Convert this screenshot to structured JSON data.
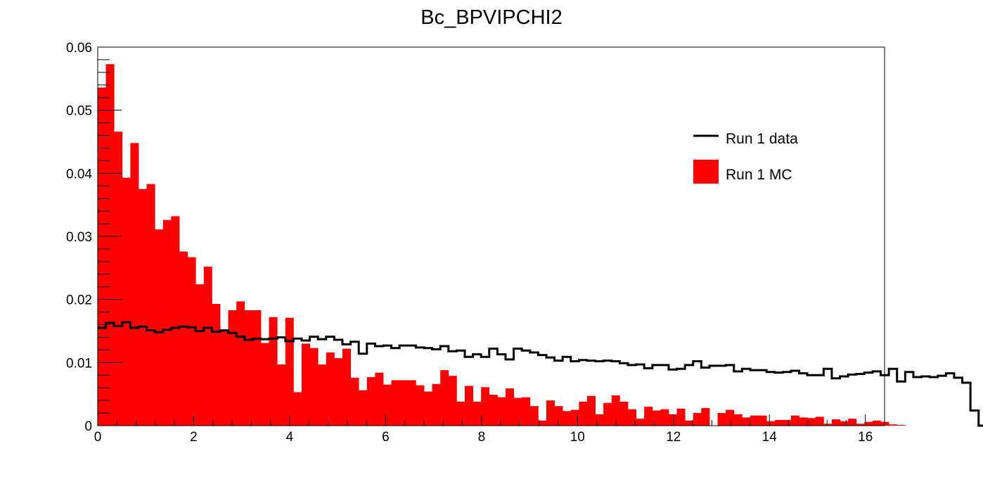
{
  "chart_data": {
    "type": "histogram",
    "title": "Bc_BPVIPCHI2",
    "xlabel": "",
    "ylabel": "",
    "xlim": [
      0,
      16.4
    ],
    "ylim": [
      0,
      0.06
    ],
    "bin_width": 0.17,
    "x_ticks": [
      "0",
      "2",
      "4",
      "6",
      "8",
      "10",
      "12",
      "14",
      "16"
    ],
    "y_ticks": [
      "0",
      "0.01",
      "0.02",
      "0.03",
      "0.04",
      "0.05",
      "0.06"
    ],
    "legend": {
      "position": "top-right",
      "entries": [
        "Run 1 data",
        "Run 1 MC"
      ]
    },
    "series": [
      {
        "name": "Run 1 data",
        "style": "step",
        "color": "#000000",
        "values": [
          0.0155,
          0.0163,
          0.0158,
          0.0164,
          0.0155,
          0.0157,
          0.0151,
          0.0148,
          0.0152,
          0.0155,
          0.0157,
          0.0156,
          0.015,
          0.0155,
          0.0149,
          0.0151,
          0.0147,
          0.0141,
          0.0136,
          0.0138,
          0.0137,
          0.0138,
          0.014,
          0.0134,
          0.0138,
          0.0135,
          0.0141,
          0.0137,
          0.0141,
          0.0136,
          0.0129,
          0.0133,
          0.0114,
          0.013,
          0.0126,
          0.0127,
          0.0123,
          0.0127,
          0.0127,
          0.0124,
          0.0123,
          0.0121,
          0.0126,
          0.0118,
          0.0119,
          0.0109,
          0.0113,
          0.0109,
          0.0122,
          0.0113,
          0.0105,
          0.0122,
          0.0119,
          0.0116,
          0.0112,
          0.0108,
          0.0103,
          0.0109,
          0.0102,
          0.0104,
          0.0103,
          0.0102,
          0.0103,
          0.0102,
          0.0099,
          0.0096,
          0.0097,
          0.0091,
          0.0096,
          0.0096,
          0.0089,
          0.009,
          0.0096,
          0.0102,
          0.0092,
          0.0095,
          0.0095,
          0.0096,
          0.0086,
          0.009,
          0.0088,
          0.0088,
          0.0085,
          0.0084,
          0.0085,
          0.0087,
          0.0083,
          0.008,
          0.008,
          0.009,
          0.0075,
          0.0078,
          0.0081,
          0.0082,
          0.0084,
          0.0086,
          0.008,
          0.009,
          0.007,
          0.0085,
          0.0077,
          0.0078,
          0.0077,
          0.0079,
          0.0083,
          0.0076,
          0.0068,
          0.0024,
          0.0,
          0.0,
          0.0,
          0.0,
          0.0,
          0.0,
          0.0,
          0.0
        ]
      },
      {
        "name": "Run 1 MC",
        "style": "filled",
        "color": "#ff0000",
        "values": [
          0.0536,
          0.0573,
          0.0466,
          0.0393,
          0.0448,
          0.0375,
          0.0383,
          0.0311,
          0.0326,
          0.0332,
          0.0276,
          0.0267,
          0.0224,
          0.0252,
          0.0193,
          0.015,
          0.0183,
          0.0197,
          0.0183,
          0.0183,
          0.0131,
          0.0172,
          0.0097,
          0.0171,
          0.0053,
          0.013,
          0.0123,
          0.0097,
          0.0116,
          0.0107,
          0.0122,
          0.0076,
          0.0056,
          0.0077,
          0.0084,
          0.0065,
          0.0072,
          0.0072,
          0.0072,
          0.0064,
          0.0054,
          0.0066,
          0.0088,
          0.0079,
          0.0038,
          0.0063,
          0.0038,
          0.0061,
          0.0049,
          0.0045,
          0.0059,
          0.0044,
          0.0045,
          0.0031,
          0.0008,
          0.004,
          0.0031,
          0.0023,
          0.0025,
          0.0038,
          0.0047,
          0.0018,
          0.0036,
          0.0048,
          0.0038,
          0.0026,
          0.0011,
          0.003,
          0.0024,
          0.0026,
          0.0018,
          0.0027,
          0.0008,
          0.002,
          0.0028,
          0.0,
          0.002,
          0.0025,
          0.0018,
          0.0013,
          0.0016,
          0.0016,
          0.0007,
          0.0009,
          0.0009,
          0.0016,
          0.0013,
          0.0012,
          0.0014,
          0.0003,
          0.001,
          0.0007,
          0.0011,
          0.0003,
          0.0006,
          0.0008,
          0.0006,
          0.0002,
          0.0001,
          0.0,
          0.0,
          0.0,
          0.0,
          0.0,
          0.0,
          0.0,
          0.0,
          0.0,
          0.0,
          0.0,
          0.0,
          0.0,
          0.0,
          0.0,
          0.0,
          0.0
        ]
      }
    ]
  }
}
